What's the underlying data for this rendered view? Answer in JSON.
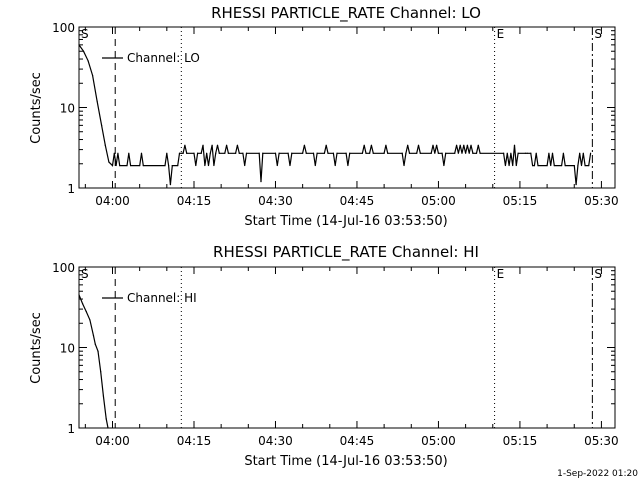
{
  "footer": {
    "timestamp": "1-Sep-2022 01:20"
  },
  "chart_data": [
    {
      "type": "line",
      "title": "RHESSI PARTICLE_RATE Channel: LO",
      "xlabel": "Start Time (14-Jul-16 03:53:50)",
      "ylabel": "Counts/sec",
      "yscale": "log",
      "ylim": [
        1,
        100
      ],
      "xlim": [
        "03:53:50",
        "05:32:30"
      ],
      "xticks": [
        "04:00",
        "04:15",
        "04:30",
        "04:45",
        "05:00",
        "05:15",
        "05:30"
      ],
      "yticks": [
        "1",
        "10",
        "100"
      ],
      "legend": {
        "position": "top-left",
        "label": "Channel: LO"
      },
      "markers": [
        {
          "time": "03:53:50",
          "label": "S",
          "style": "none"
        },
        {
          "time": "04:00:30",
          "label": "",
          "style": "dashed"
        },
        {
          "time": "04:12:40",
          "label": "",
          "style": "dotted"
        },
        {
          "time": "05:10:20",
          "label": "E",
          "style": "dotted"
        },
        {
          "time": "05:28:20",
          "label": "S",
          "style": "dashdot"
        }
      ],
      "series": [
        {
          "name": "Channel: LO",
          "points": [
            [
              "03:53:50",
              60
            ],
            [
              "03:54:40",
              50
            ],
            [
              "03:55:30",
              38
            ],
            [
              "03:56:20",
              25
            ],
            [
              "03:57:10",
              12
            ],
            [
              "03:58:00",
              6
            ],
            [
              "03:58:40",
              3.4
            ],
            [
              "03:59:20",
              2.1
            ],
            [
              "04:00:00",
              1.9
            ],
            [
              "04:00:20",
              2.7
            ],
            [
              "04:00:40",
              1.9
            ],
            [
              "04:01:00",
              2.7
            ],
            [
              "04:01:20",
              1.9
            ],
            [
              "04:02:40",
              1.9
            ],
            [
              "04:03:00",
              2.7
            ],
            [
              "04:03:20",
              1.9
            ],
            [
              "04:05:00",
              1.9
            ],
            [
              "04:05:20",
              2.7
            ],
            [
              "04:05:40",
              1.9
            ],
            [
              "04:09:40",
              1.9
            ],
            [
              "04:10:00",
              2.7
            ],
            [
              "04:10:20",
              1.9
            ],
            [
              "04:10:40",
              1.1
            ],
            [
              "04:11:00",
              1.9
            ],
            [
              "04:12:00",
              1.9
            ],
            [
              "04:12:20",
              2.7
            ],
            [
              "04:12:40",
              2.7
            ],
            [
              "04:13:00",
              2.7
            ],
            [
              "04:13:20",
              3.4
            ],
            [
              "04:13:40",
              2.7
            ],
            [
              "04:15:00",
              2.7
            ],
            [
              "04:15:20",
              1.9
            ],
            [
              "04:15:40",
              2.7
            ],
            [
              "04:16:20",
              2.7
            ],
            [
              "04:16:40",
              3.4
            ],
            [
              "04:17:00",
              1.9
            ],
            [
              "04:17:20",
              2.7
            ],
            [
              "04:17:40",
              1.9
            ],
            [
              "04:18:00",
              2.7
            ],
            [
              "04:18:20",
              3.4
            ],
            [
              "04:18:40",
              1.9
            ],
            [
              "04:19:00",
              2.7
            ],
            [
              "04:19:20",
              3.4
            ],
            [
              "04:19:40",
              2.7
            ],
            [
              "04:20:40",
              2.7
            ],
            [
              "04:21:00",
              3.4
            ],
            [
              "04:21:20",
              2.7
            ],
            [
              "04:22:40",
              2.7
            ],
            [
              "04:23:00",
              3.4
            ],
            [
              "04:23:20",
              2.7
            ],
            [
              "04:24:00",
              2.7
            ],
            [
              "04:24:20",
              1.9
            ],
            [
              "04:24:40",
              2.7
            ],
            [
              "04:27:00",
              2.7
            ],
            [
              "04:27:20",
              1.2
            ],
            [
              "04:27:40",
              2.7
            ],
            [
              "04:30:00",
              2.7
            ],
            [
              "04:30:20",
              1.9
            ],
            [
              "04:30:40",
              2.7
            ],
            [
              "04:32:20",
              2.7
            ],
            [
              "04:32:40",
              1.9
            ],
            [
              "04:33:00",
              2.7
            ],
            [
              "04:35:00",
              2.7
            ],
            [
              "04:35:20",
              3.4
            ],
            [
              "04:35:40",
              2.7
            ],
            [
              "04:37:00",
              2.7
            ],
            [
              "04:37:20",
              1.9
            ],
            [
              "04:37:40",
              2.7
            ],
            [
              "04:39:00",
              2.7
            ],
            [
              "04:39:20",
              3.4
            ],
            [
              "04:39:40",
              2.7
            ],
            [
              "04:40:40",
              2.7
            ],
            [
              "04:41:00",
              1.9
            ],
            [
              "04:41:20",
              2.7
            ],
            [
              "04:43:00",
              2.7
            ],
            [
              "04:43:20",
              1.9
            ],
            [
              "04:43:40",
              2.7
            ],
            [
              "04:46:00",
              2.7
            ],
            [
              "04:46:20",
              3.4
            ],
            [
              "04:46:40",
              2.7
            ],
            [
              "04:47:20",
              2.7
            ],
            [
              "04:47:40",
              3.4
            ],
            [
              "04:48:00",
              2.7
            ],
            [
              "04:50:00",
              2.7
            ],
            [
              "04:50:20",
              3.4
            ],
            [
              "04:50:40",
              2.7
            ],
            [
              "04:53:20",
              2.7
            ],
            [
              "04:53:40",
              1.9
            ],
            [
              "04:54:00",
              2.7
            ],
            [
              "04:54:20",
              3.4
            ],
            [
              "04:54:40",
              2.7
            ],
            [
              "04:56:00",
              2.7
            ],
            [
              "04:56:20",
              3.4
            ],
            [
              "04:56:40",
              2.7
            ],
            [
              "04:58:40",
              2.7
            ],
            [
              "04:59:00",
              3.4
            ],
            [
              "04:59:20",
              2.7
            ],
            [
              "04:59:40",
              3.4
            ],
            [
              "05:00:00",
              2.7
            ],
            [
              "05:00:40",
              2.7
            ],
            [
              "05:01:00",
              1.9
            ],
            [
              "05:01:20",
              2.7
            ],
            [
              "05:03:00",
              2.7
            ],
            [
              "05:03:20",
              3.4
            ],
            [
              "05:03:40",
              2.7
            ],
            [
              "05:04:00",
              3.4
            ],
            [
              "05:04:20",
              2.7
            ],
            [
              "05:04:40",
              3.4
            ],
            [
              "05:05:00",
              2.7
            ],
            [
              "05:05:20",
              3.4
            ],
            [
              "05:05:40",
              2.7
            ],
            [
              "05:06:00",
              3.4
            ],
            [
              "05:06:20",
              2.7
            ],
            [
              "05:07:00",
              2.7
            ],
            [
              "05:07:20",
              3.4
            ],
            [
              "05:07:40",
              2.7
            ],
            [
              "05:12:00",
              2.7
            ],
            [
              "05:12:20",
              1.9
            ],
            [
              "05:12:40",
              2.7
            ],
            [
              "05:13:00",
              1.9
            ],
            [
              "05:13:20",
              2.7
            ],
            [
              "05:13:40",
              1.9
            ],
            [
              "05:14:00",
              3.4
            ],
            [
              "05:14:20",
              1.9
            ],
            [
              "05:14:40",
              2.7
            ],
            [
              "05:16:00",
              2.7
            ],
            [
              "05:16:20",
              2.7
            ],
            [
              "05:17:00",
              2.7
            ],
            [
              "05:17:20",
              1.9
            ],
            [
              "05:17:40",
              1.9
            ],
            [
              "05:18:00",
              2.7
            ],
            [
              "05:18:20",
              1.9
            ],
            [
              "05:20:00",
              1.9
            ],
            [
              "05:20:20",
              2.7
            ],
            [
              "05:20:40",
              1.9
            ],
            [
              "05:21:00",
              2.7
            ],
            [
              "05:21:20",
              1.9
            ],
            [
              "05:22:40",
              1.9
            ],
            [
              "05:23:00",
              2.7
            ],
            [
              "05:23:20",
              1.9
            ],
            [
              "05:25:00",
              1.9
            ],
            [
              "05:25:20",
              1.1
            ],
            [
              "05:25:40",
              1.9
            ],
            [
              "05:26:00",
              2.7
            ],
            [
              "05:26:20",
              1.9
            ],
            [
              "05:26:40",
              2.7
            ],
            [
              "05:27:00",
              1.9
            ],
            [
              "05:27:40",
              1.9
            ],
            [
              "05:28:00",
              2.7
            ]
          ]
        }
      ]
    },
    {
      "type": "line",
      "title": "RHESSI PARTICLE_RATE Channel: HI",
      "xlabel": "Start Time (14-Jul-16 03:53:50)",
      "ylabel": "Counts/sec",
      "yscale": "log",
      "ylim": [
        1,
        100
      ],
      "xlim": [
        "03:53:50",
        "05:32:30"
      ],
      "xticks": [
        "04:00",
        "04:15",
        "04:30",
        "04:45",
        "05:00",
        "05:15",
        "05:30"
      ],
      "yticks": [
        "1",
        "10",
        "100"
      ],
      "legend": {
        "position": "top-left",
        "label": "Channel: HI"
      },
      "markers": [
        {
          "time": "03:53:50",
          "label": "S",
          "style": "none"
        },
        {
          "time": "04:00:30",
          "label": "",
          "style": "dashed"
        },
        {
          "time": "04:12:40",
          "label": "",
          "style": "dotted"
        },
        {
          "time": "05:10:20",
          "label": "E",
          "style": "dotted"
        },
        {
          "time": "05:28:20",
          "label": "S",
          "style": "dashdot"
        }
      ],
      "series": [
        {
          "name": "Channel: HI",
          "points": [
            [
              "03:53:50",
              45
            ],
            [
              "03:54:30",
              35
            ],
            [
              "03:55:10",
              28
            ],
            [
              "03:55:50",
              22
            ],
            [
              "03:56:30",
              14
            ],
            [
              "03:56:50",
              11
            ],
            [
              "03:57:20",
              9
            ],
            [
              "03:57:50",
              5
            ],
            [
              "03:58:20",
              2.5
            ],
            [
              "03:58:50",
              1.3
            ],
            [
              "03:59:10",
              1
            ]
          ]
        }
      ]
    }
  ]
}
